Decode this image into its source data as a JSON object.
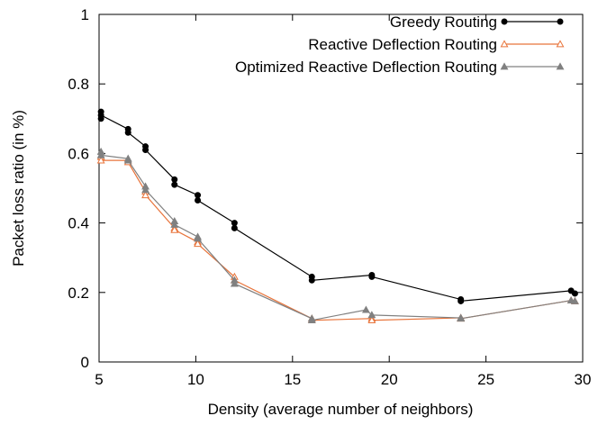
{
  "chart_data": {
    "type": "line",
    "title": "",
    "xlabel": "Density (average number of neighbors)",
    "ylabel": "Packet loss ratio (in %)",
    "xlim": [
      5,
      30
    ],
    "ylim": [
      0,
      1
    ],
    "xticks": [
      "5",
      "10",
      "15",
      "20",
      "25",
      "30"
    ],
    "yticks": [
      "0",
      "0.2",
      "0.4",
      "0.6",
      "0.8",
      "1"
    ],
    "xtick_values": [
      5,
      10,
      15,
      20,
      25,
      30
    ],
    "ytick_values": [
      0,
      0.2,
      0.4,
      0.6,
      0.8,
      1
    ],
    "grid": false,
    "legend_position": "top-right",
    "series": [
      {
        "name": "Greedy Routing",
        "color": "#000000",
        "marker": "circle",
        "x": [
          5.1,
          5.1,
          5.1,
          6.5,
          6.5,
          7.4,
          7.4,
          8.9,
          8.9,
          10.1,
          10.1,
          12.0,
          12.0,
          16.0,
          16.0,
          19.1,
          19.1,
          23.7,
          23.7,
          29.4,
          29.6
        ],
        "y": [
          0.72,
          0.7,
          0.71,
          0.67,
          0.66,
          0.62,
          0.61,
          0.525,
          0.51,
          0.48,
          0.465,
          0.4,
          0.385,
          0.245,
          0.235,
          0.25,
          0.245,
          0.18,
          0.175,
          0.205,
          0.197
        ]
      },
      {
        "name": "Reactive Deflection Routing",
        "color": "#e8743b",
        "marker": "triangle-open",
        "x": [
          5.1,
          5.1,
          6.5,
          6.5,
          7.4,
          7.4,
          8.9,
          8.9,
          10.1,
          10.1,
          12.0,
          12.0,
          16.0,
          16.0,
          19.1,
          19.1,
          23.7,
          23.7,
          29.4,
          29.6
        ],
        "y": [
          0.59,
          0.58,
          0.58,
          0.575,
          0.49,
          0.48,
          0.385,
          0.38,
          0.345,
          0.34,
          0.245,
          0.235,
          0.125,
          0.12,
          0.125,
          0.12,
          0.127,
          0.125,
          0.177,
          0.175
        ]
      },
      {
        "name": "Optimized Reactive Deflection Routing",
        "color": "#808080",
        "marker": "triangle",
        "x": [
          5.1,
          5.1,
          6.5,
          6.5,
          7.4,
          7.4,
          8.9,
          8.9,
          10.1,
          10.1,
          12.0,
          12.0,
          16.0,
          16.0,
          18.8,
          19.1,
          23.7,
          23.7,
          29.4,
          29.6
        ],
        "y": [
          0.605,
          0.595,
          0.585,
          0.58,
          0.505,
          0.495,
          0.405,
          0.395,
          0.36,
          0.355,
          0.235,
          0.225,
          0.125,
          0.12,
          0.15,
          0.135,
          0.127,
          0.125,
          0.177,
          0.175
        ]
      }
    ]
  }
}
